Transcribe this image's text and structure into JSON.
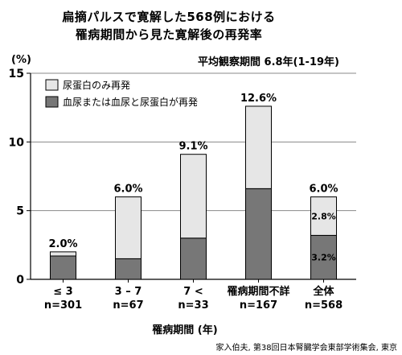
{
  "header": {
    "title_line1": "扁摘パルスで寛解した568例における",
    "title_line2": "罹病期間から見た寛解後の再発率",
    "subtitle": "平均観察期間 6.8年(1-19年)"
  },
  "citation": "家入伯夫, 第38回日本腎臓学会東部学術集会, 東京",
  "colors": {
    "urine_protein_only": "#e6e6e6",
    "hematuria_or_both": "#777777",
    "bar_stroke": "#000000"
  },
  "chart_data": {
    "type": "bar",
    "stacked": true,
    "ylabel_unit": "(%)",
    "xlabel": "罹病期間 (年)",
    "ylim": [
      0,
      15
    ],
    "yticks": [
      0,
      5,
      10,
      15
    ],
    "grid": true,
    "legend_position": "top-left",
    "categories": [
      {
        "label": "≤ 3",
        "n": "n=301"
      },
      {
        "label": "3 – 7",
        "n": "n=67"
      },
      {
        "label": "7 <",
        "n": "n=33"
      },
      {
        "label": "罹病期間不詳",
        "n": "n=167"
      },
      {
        "label": "全体",
        "n": "n=568"
      }
    ],
    "series": [
      {
        "name": "血尿または血尿と尿蛋白が再発",
        "color_key": "hematuria_or_both",
        "values": [
          1.7,
          1.5,
          3.0,
          6.6,
          3.2
        ],
        "inner_labels": [
          "",
          "",
          "",
          "",
          "3.2%"
        ]
      },
      {
        "name": "尿蛋白のみ再発",
        "color_key": "urine_protein_only",
        "values": [
          0.3,
          4.5,
          6.1,
          6.0,
          2.8
        ],
        "inner_labels": [
          "",
          "",
          "",
          "",
          "2.8%"
        ]
      }
    ],
    "totals": [
      "2.0%",
      "6.0%",
      "9.1%",
      "12.6%",
      "6.0%"
    ]
  }
}
